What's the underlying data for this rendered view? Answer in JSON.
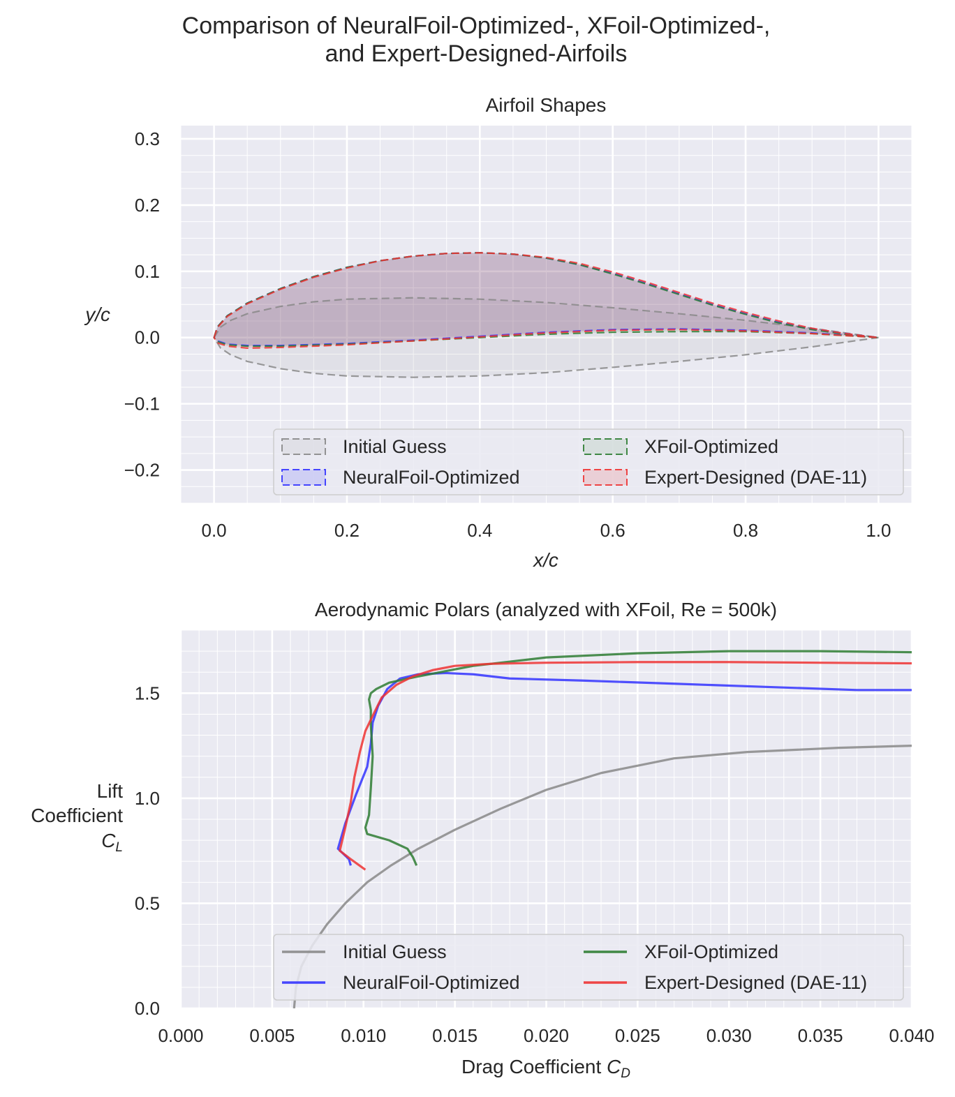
{
  "figure": {
    "title_line1": "Comparison of NeuralFoil-Optimized-, XFoil-Optimized-,",
    "title_line2": "and Expert-Designed-Airfoils"
  },
  "chart_data": [
    {
      "type": "area",
      "title": "Airfoil Shapes",
      "xlabel": "x/c",
      "ylabel": "y/c",
      "xlim": [
        -0.05,
        1.05
      ],
      "ylim": [
        -0.25,
        0.32
      ],
      "xticks": [
        "0.0",
        "0.2",
        "0.4",
        "0.6",
        "0.8",
        "1.0"
      ],
      "yticks": [
        "−0.2",
        "−0.1",
        "0.0",
        "0.1",
        "0.2",
        "0.3"
      ],
      "grid": true,
      "legend_position": "lower-right",
      "series": [
        {
          "name": "Initial Guess",
          "color": "#888888",
          "upper": [
            [
              0,
              0
            ],
            [
              0.01,
              0.016
            ],
            [
              0.025,
              0.026
            ],
            [
              0.05,
              0.036
            ],
            [
              0.1,
              0.047
            ],
            [
              0.15,
              0.054
            ],
            [
              0.2,
              0.058
            ],
            [
              0.3,
              0.06
            ],
            [
              0.4,
              0.058
            ],
            [
              0.5,
              0.053
            ],
            [
              0.6,
              0.045
            ],
            [
              0.7,
              0.036
            ],
            [
              0.8,
              0.026
            ],
            [
              0.9,
              0.014
            ],
            [
              1.0,
              0
            ]
          ],
          "lower": [
            [
              0,
              0
            ],
            [
              0.01,
              -0.016
            ],
            [
              0.025,
              -0.026
            ],
            [
              0.05,
              -0.036
            ],
            [
              0.1,
              -0.047
            ],
            [
              0.15,
              -0.054
            ],
            [
              0.2,
              -0.058
            ],
            [
              0.3,
              -0.06
            ],
            [
              0.4,
              -0.058
            ],
            [
              0.5,
              -0.053
            ],
            [
              0.6,
              -0.045
            ],
            [
              0.7,
              -0.036
            ],
            [
              0.8,
              -0.026
            ],
            [
              0.9,
              -0.014
            ],
            [
              1.0,
              0
            ]
          ]
        },
        {
          "name": "NeuralFoil-Optimized",
          "color": "#3333ff",
          "upper": [
            [
              0,
              0
            ],
            [
              0.005,
              0.016
            ],
            [
              0.02,
              0.033
            ],
            [
              0.05,
              0.052
            ],
            [
              0.1,
              0.074
            ],
            [
              0.15,
              0.092
            ],
            [
              0.2,
              0.106
            ],
            [
              0.25,
              0.116
            ],
            [
              0.3,
              0.123
            ],
            [
              0.35,
              0.127
            ],
            [
              0.4,
              0.128
            ],
            [
              0.45,
              0.126
            ],
            [
              0.5,
              0.12
            ],
            [
              0.55,
              0.11
            ],
            [
              0.6,
              0.097
            ],
            [
              0.65,
              0.082
            ],
            [
              0.7,
              0.066
            ],
            [
              0.75,
              0.05
            ],
            [
              0.8,
              0.036
            ],
            [
              0.85,
              0.023
            ],
            [
              0.9,
              0.013
            ],
            [
              0.95,
              0.006
            ],
            [
              1.0,
              0
            ]
          ],
          "lower": [
            [
              0,
              0
            ],
            [
              0.005,
              -0.005
            ],
            [
              0.02,
              -0.01
            ],
            [
              0.05,
              -0.012
            ],
            [
              0.1,
              -0.012
            ],
            [
              0.2,
              -0.009
            ],
            [
              0.3,
              -0.004
            ],
            [
              0.4,
              0.002
            ],
            [
              0.5,
              0.008
            ],
            [
              0.6,
              0.012
            ],
            [
              0.7,
              0.013
            ],
            [
              0.8,
              0.011
            ],
            [
              0.9,
              0.007
            ],
            [
              1.0,
              0
            ]
          ]
        },
        {
          "name": "XFoil-Optimized",
          "color": "#2e7d32",
          "upper": [
            [
              0,
              0
            ],
            [
              0.005,
              0.016
            ],
            [
              0.02,
              0.033
            ],
            [
              0.05,
              0.052
            ],
            [
              0.1,
              0.074
            ],
            [
              0.15,
              0.092
            ],
            [
              0.2,
              0.106
            ],
            [
              0.25,
              0.116
            ],
            [
              0.3,
              0.123
            ],
            [
              0.35,
              0.127
            ],
            [
              0.4,
              0.128
            ],
            [
              0.45,
              0.126
            ],
            [
              0.5,
              0.12
            ],
            [
              0.55,
              0.11
            ],
            [
              0.6,
              0.096
            ],
            [
              0.65,
              0.081
            ],
            [
              0.7,
              0.065
            ],
            [
              0.75,
              0.049
            ],
            [
              0.8,
              0.035
            ],
            [
              0.85,
              0.022
            ],
            [
              0.9,
              0.012
            ],
            [
              0.95,
              0.005
            ],
            [
              1.0,
              0
            ]
          ],
          "lower": [
            [
              0,
              0
            ],
            [
              0.005,
              -0.006
            ],
            [
              0.02,
              -0.011
            ],
            [
              0.05,
              -0.013
            ],
            [
              0.1,
              -0.013
            ],
            [
              0.2,
              -0.01
            ],
            [
              0.3,
              -0.005
            ],
            [
              0.4,
              0.0
            ],
            [
              0.5,
              0.005
            ],
            [
              0.6,
              0.008
            ],
            [
              0.7,
              0.009
            ],
            [
              0.8,
              0.009
            ],
            [
              0.9,
              0.006
            ],
            [
              1.0,
              0
            ]
          ]
        },
        {
          "name": "Expert-Designed (DAE-11)",
          "color": "#ee3333",
          "upper": [
            [
              0,
              0
            ],
            [
              0.005,
              0.015
            ],
            [
              0.02,
              0.032
            ],
            [
              0.05,
              0.051
            ],
            [
              0.1,
              0.073
            ],
            [
              0.15,
              0.091
            ],
            [
              0.2,
              0.105
            ],
            [
              0.25,
              0.116
            ],
            [
              0.3,
              0.123
            ],
            [
              0.35,
              0.127
            ],
            [
              0.4,
              0.128
            ],
            [
              0.45,
              0.126
            ],
            [
              0.5,
              0.121
            ],
            [
              0.55,
              0.112
            ],
            [
              0.6,
              0.099
            ],
            [
              0.65,
              0.084
            ],
            [
              0.7,
              0.068
            ],
            [
              0.75,
              0.052
            ],
            [
              0.8,
              0.038
            ],
            [
              0.85,
              0.025
            ],
            [
              0.9,
              0.014
            ],
            [
              0.95,
              0.006
            ],
            [
              1.0,
              0
            ]
          ],
          "lower": [
            [
              0,
              0
            ],
            [
              0.005,
              -0.008
            ],
            [
              0.02,
              -0.013
            ],
            [
              0.05,
              -0.016
            ],
            [
              0.1,
              -0.015
            ],
            [
              0.2,
              -0.011
            ],
            [
              0.3,
              -0.005
            ],
            [
              0.4,
              0.001
            ],
            [
              0.5,
              0.007
            ],
            [
              0.6,
              0.011
            ],
            [
              0.7,
              0.012
            ],
            [
              0.8,
              0.01
            ],
            [
              0.9,
              0.006
            ],
            [
              1.0,
              0
            ]
          ]
        }
      ]
    },
    {
      "type": "line",
      "title": "Aerodynamic Polars (analyzed with XFoil, Re = 500k)",
      "xlabel": "Drag Coefficient C_D",
      "ylabel_lines": [
        "Lift",
        "Coefficient",
        "C_L"
      ],
      "xlim": [
        0,
        0.04
      ],
      "ylim": [
        0,
        1.8
      ],
      "xticks": [
        "0.000",
        "0.005",
        "0.010",
        "0.015",
        "0.020",
        "0.025",
        "0.030",
        "0.035",
        "0.040"
      ],
      "yticks": [
        "0.0",
        "0.5",
        "1.0",
        "1.5"
      ],
      "grid": true,
      "legend_position": "lower-right",
      "series": [
        {
          "name": "Initial Guess",
          "color": "#888888",
          "points": [
            [
              0.0062,
              0
            ],
            [
              0.0063,
              0.1
            ],
            [
              0.0066,
              0.2
            ],
            [
              0.0072,
              0.3
            ],
            [
              0.008,
              0.4
            ],
            [
              0.009,
              0.5
            ],
            [
              0.0102,
              0.6
            ],
            [
              0.0115,
              0.68
            ],
            [
              0.013,
              0.76
            ],
            [
              0.015,
              0.85
            ],
            [
              0.0175,
              0.95
            ],
            [
              0.02,
              1.04
            ],
            [
              0.023,
              1.12
            ],
            [
              0.027,
              1.19
            ],
            [
              0.031,
              1.22
            ],
            [
              0.036,
              1.24
            ],
            [
              0.04,
              1.25
            ]
          ]
        },
        {
          "name": "NeuralFoil-Optimized",
          "color": "#3333ff",
          "points": [
            [
              0.0093,
              0.68
            ],
            [
              0.0092,
              0.71
            ],
            [
              0.0086,
              0.76
            ],
            [
              0.009,
              0.88
            ],
            [
              0.0096,
              1.02
            ],
            [
              0.0102,
              1.15
            ],
            [
              0.0104,
              1.26
            ],
            [
              0.0105,
              1.36
            ],
            [
              0.0108,
              1.44
            ],
            [
              0.0113,
              1.52
            ],
            [
              0.012,
              1.57
            ],
            [
              0.013,
              1.59
            ],
            [
              0.0145,
              1.596
            ],
            [
              0.016,
              1.59
            ],
            [
              0.018,
              1.57
            ],
            [
              0.022,
              1.56
            ],
            [
              0.027,
              1.545
            ],
            [
              0.032,
              1.53
            ],
            [
              0.037,
              1.515
            ],
            [
              0.04,
              1.515
            ]
          ]
        },
        {
          "name": "XFoil-Optimized",
          "color": "#2e7d32",
          "points": [
            [
              0.0129,
              0.68
            ],
            [
              0.0127,
              0.72
            ],
            [
              0.0124,
              0.76
            ],
            [
              0.0114,
              0.8
            ],
            [
              0.0102,
              0.83
            ],
            [
              0.0101,
              0.86
            ],
            [
              0.0103,
              0.92
            ],
            [
              0.0104,
              1.05
            ],
            [
              0.0105,
              1.2
            ],
            [
              0.0104,
              1.35
            ],
            [
              0.0104,
              1.42
            ],
            [
              0.0103,
              1.47
            ],
            [
              0.0104,
              1.5
            ],
            [
              0.0107,
              1.52
            ],
            [
              0.0114,
              1.55
            ],
            [
              0.013,
              1.58
            ],
            [
              0.016,
              1.63
            ],
            [
              0.02,
              1.67
            ],
            [
              0.025,
              1.69
            ],
            [
              0.03,
              1.7
            ],
            [
              0.035,
              1.7
            ],
            [
              0.04,
              1.695
            ]
          ]
        },
        {
          "name": "Expert-Designed (DAE-11)",
          "color": "#ee3333",
          "points": [
            [
              0.0101,
              0.66
            ],
            [
              0.0093,
              0.71
            ],
            [
              0.0087,
              0.75
            ],
            [
              0.009,
              0.86
            ],
            [
              0.0093,
              0.98
            ],
            [
              0.0095,
              1.1
            ],
            [
              0.0098,
              1.22
            ],
            [
              0.0101,
              1.32
            ],
            [
              0.0106,
              1.41
            ],
            [
              0.011,
              1.48
            ],
            [
              0.0118,
              1.54
            ],
            [
              0.0127,
              1.58
            ],
            [
              0.0138,
              1.61
            ],
            [
              0.015,
              1.63
            ],
            [
              0.017,
              1.64
            ],
            [
              0.02,
              1.645
            ],
            [
              0.025,
              1.648
            ],
            [
              0.03,
              1.648
            ],
            [
              0.035,
              1.645
            ],
            [
              0.04,
              1.642
            ]
          ]
        }
      ]
    }
  ]
}
